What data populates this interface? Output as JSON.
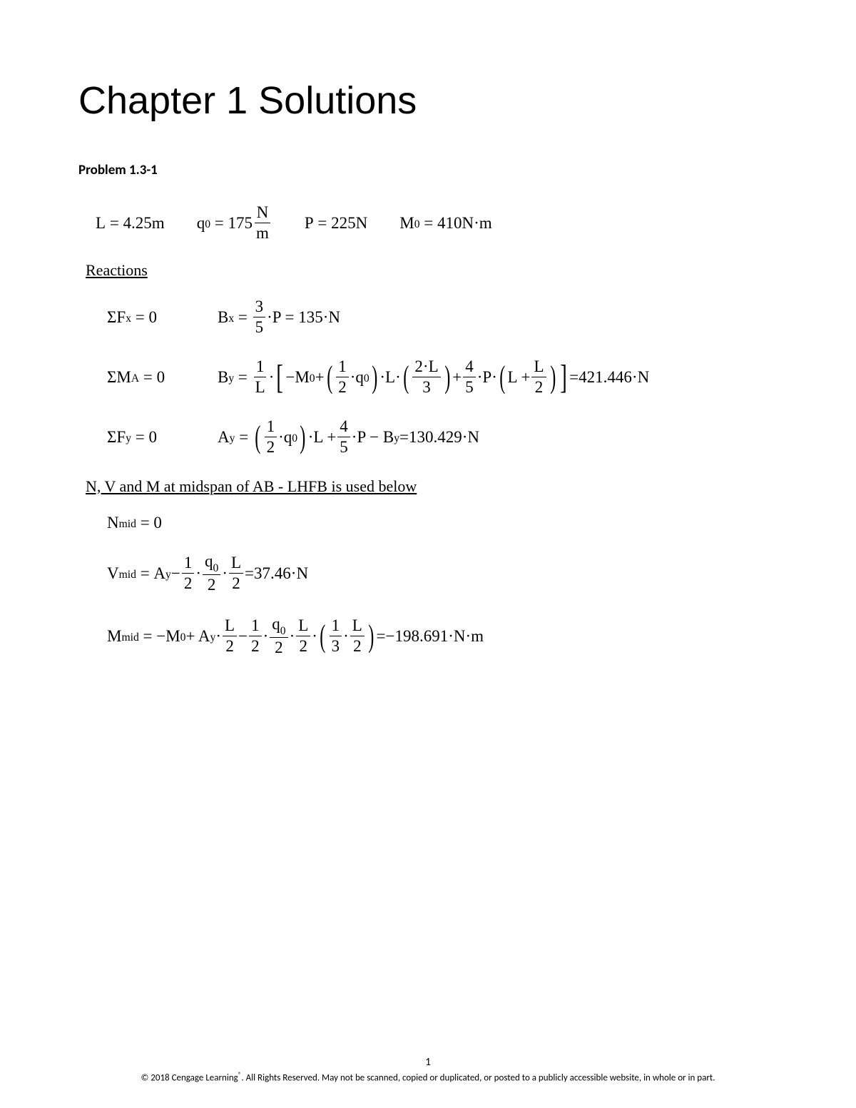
{
  "chapter_title": "Chapter 1 Solutions",
  "problem_title": "Problem 1.3-1",
  "given": {
    "L": {
      "label": "L",
      "value": "4.25m"
    },
    "q0": {
      "label": "q",
      "sub": "0",
      "value": "175",
      "unit_num": "N",
      "unit_den": "m"
    },
    "P": {
      "label": "P",
      "value": "225N"
    },
    "M0": {
      "label": "M",
      "sub": "0",
      "value": "410N·m"
    }
  },
  "sections": {
    "reactions": "Reactions",
    "midspan": "N, V and M at midspan of AB - LHFB is used below"
  },
  "reactions": {
    "fx": {
      "left": "ΣF",
      "left_sub": "x",
      "bx_label": "B",
      "bx_sub": "x",
      "num": "3",
      "den": "5",
      "result": "135·N"
    },
    "ma": {
      "left": "ΣM",
      "left_sub": "A",
      "by_label": "B",
      "by_sub": "y",
      "result": "421.446·N"
    },
    "fy": {
      "left": "ΣF",
      "left_sub": "y",
      "ay_label": "A",
      "ay_sub": "y",
      "result": "130.429·N"
    }
  },
  "midspan": {
    "n": {
      "label": "N",
      "sub": "mid",
      "value": "0"
    },
    "v": {
      "label": "V",
      "sub": "mid",
      "result": "37.46·N"
    },
    "m": {
      "label": "M",
      "sub": "mid",
      "result": "−198.691·N·m"
    }
  },
  "page_number": "1",
  "copyright": "© 2018 Cengage Learning",
  "copyright_suffix": ". All Rights Reserved. May not be scanned, copied or duplicated, or posted to a publicly accessible website, in whole or in part.",
  "reg": "®"
}
